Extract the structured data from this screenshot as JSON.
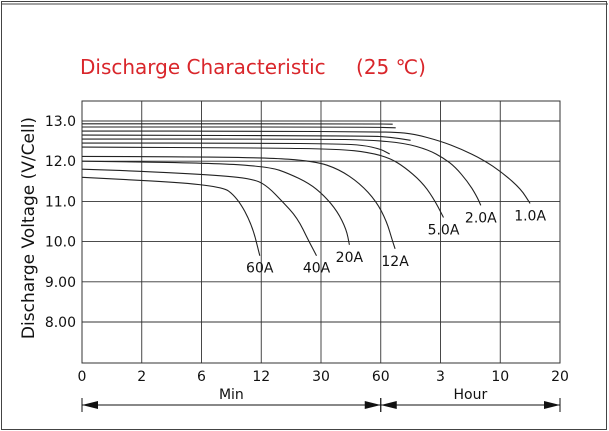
{
  "chart_data": {
    "type": "line",
    "title": "Discharge Characteristic",
    "title_condition": "(25 ℃)",
    "ylabel": "Discharge Voltage (V/Cell)",
    "ylim": [
      7.0,
      13.0
    ],
    "yticks": [
      {
        "v": 13.0,
        "label": "13.0"
      },
      {
        "v": 12.0,
        "label": "12.0"
      },
      {
        "v": 11.0,
        "label": "11.0"
      },
      {
        "v": 10.0,
        "label": "10.0"
      },
      {
        "v": 9.0,
        "label": "9.00"
      },
      {
        "v": 8.0,
        "label": "8.00"
      }
    ],
    "xticks": [
      "0",
      "2",
      "6",
      "12",
      "30",
      "60",
      "3",
      "10",
      "20"
    ],
    "x_units": [
      {
        "label": "Min",
        "from": "0",
        "to": "60"
      },
      {
        "label": "Hour",
        "from": "60",
        "to": "20"
      }
    ],
    "grid": true,
    "colors": {
      "title": "#d9262b",
      "lines": "#222222",
      "grid": "#333333"
    },
    "series": [
      {
        "name": "60A",
        "points": [
          [
            0,
            11.6
          ],
          [
            4.6,
            11.42
          ],
          [
            5.2,
            11.1
          ],
          [
            5.7,
            10.4
          ],
          [
            5.95,
            9.65
          ]
        ]
      },
      {
        "name": "40A",
        "points": [
          [
            0,
            11.8
          ],
          [
            2.0,
            11.75
          ],
          [
            4.6,
            11.65
          ],
          [
            5.8,
            11.55
          ],
          [
            6.25,
            11.35
          ],
          [
            6.7,
            11.0
          ],
          [
            7.2,
            10.6
          ],
          [
            7.6,
            10.0
          ],
          [
            7.85,
            9.65
          ]
        ]
      },
      {
        "name": "20A",
        "points": [
          [
            0,
            12.0
          ],
          [
            4.6,
            11.95
          ],
          [
            6.3,
            11.85
          ],
          [
            6.9,
            11.7
          ],
          [
            7.6,
            11.45
          ],
          [
            8.1,
            11.15
          ],
          [
            8.55,
            10.75
          ],
          [
            8.85,
            10.3
          ],
          [
            8.95,
            9.92
          ]
        ]
      },
      {
        "name": "12A",
        "points": [
          [
            0,
            12.12
          ],
          [
            6.0,
            12.1
          ],
          [
            7.8,
            12.0
          ],
          [
            8.6,
            11.8
          ],
          [
            9.3,
            11.45
          ],
          [
            9.85,
            11.0
          ],
          [
            10.2,
            10.5
          ],
          [
            10.4,
            10.0
          ],
          [
            10.48,
            9.82
          ]
        ]
      },
      {
        "name": "5.0A",
        "points": [
          [
            0,
            12.35
          ],
          [
            6.0,
            12.33
          ],
          [
            8.6,
            12.3
          ],
          [
            9.6,
            12.22
          ],
          [
            10.3,
            12.08
          ],
          [
            10.8,
            11.85
          ],
          [
            11.35,
            11.5
          ],
          [
            11.75,
            11.1
          ],
          [
            12.1,
            10.6
          ]
        ]
      },
      {
        "name": "2.0A",
        "points": [
          [
            0,
            12.55
          ],
          [
            8.0,
            12.55
          ],
          [
            9.6,
            12.53
          ],
          [
            10.8,
            12.45
          ],
          [
            11.6,
            12.28
          ],
          [
            12.1,
            12.08
          ],
          [
            12.5,
            11.85
          ],
          [
            12.9,
            11.5
          ],
          [
            13.2,
            11.15
          ],
          [
            13.35,
            10.9
          ]
        ]
      },
      {
        "name": "1.0A",
        "points": [
          [
            0,
            12.75
          ],
          [
            6.0,
            12.75
          ],
          [
            9.8,
            12.73
          ],
          [
            10.5,
            12.72
          ],
          [
            11.1,
            12.68
          ],
          [
            12.0,
            12.5
          ],
          [
            12.7,
            12.3
          ],
          [
            13.4,
            12.05
          ],
          [
            14.1,
            11.7
          ],
          [
            14.7,
            11.3
          ],
          [
            15.0,
            10.95
          ]
        ]
      },
      {
        "name": "",
        "points": [
          [
            0,
            12.65
          ],
          [
            9.6,
            12.63
          ],
          [
            10.3,
            12.6
          ],
          [
            11.0,
            12.52
          ]
        ]
      },
      {
        "name": "",
        "points": [
          [
            0,
            12.45
          ],
          [
            6.0,
            12.45
          ],
          [
            8.6,
            12.43
          ],
          [
            9.4,
            12.4
          ],
          [
            10.0,
            12.3
          ],
          [
            10.3,
            12.18
          ]
        ]
      },
      {
        "name": "",
        "points": [
          [
            0,
            12.85
          ],
          [
            9.6,
            12.85
          ],
          [
            10.5,
            12.83
          ]
        ]
      },
      {
        "name": "",
        "points": [
          [
            0,
            12.93
          ],
          [
            9.6,
            12.93
          ],
          [
            10.4,
            12.92
          ]
        ]
      }
    ]
  }
}
